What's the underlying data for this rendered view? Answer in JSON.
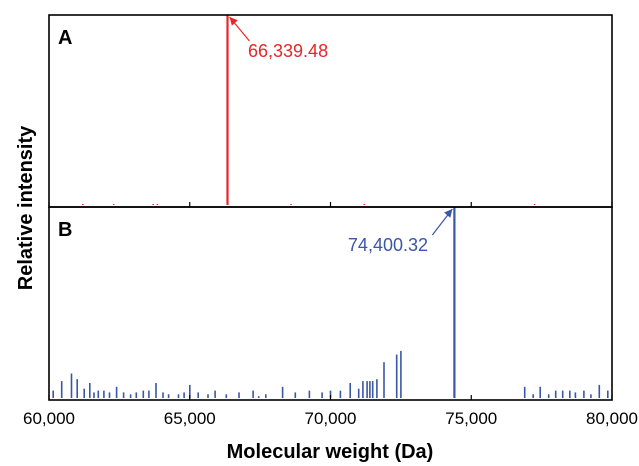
{
  "chart_data": {
    "type": "bar",
    "xlabel": "Molecular weight (Da)",
    "ylabel": "Relative intensity",
    "xlim": [
      60000,
      80000
    ],
    "ylim": [
      0,
      1
    ],
    "xticks": [
      60000,
      65000,
      70000,
      75000,
      80000
    ],
    "xtick_labels": [
      "60,000",
      "65,000",
      "70,000",
      "75,000",
      "80,000"
    ],
    "panels": [
      {
        "label": "A",
        "color": "#e8262a",
        "annotation": "66,339.48",
        "peak_x": 66339.48,
        "peaks": [
          {
            "x": 61200,
            "y": 0.005
          },
          {
            "x": 62300,
            "y": 0.006
          },
          {
            "x": 63700,
            "y": 0.005
          },
          {
            "x": 63850,
            "y": 0.004
          },
          {
            "x": 66339.48,
            "y": 1.0
          },
          {
            "x": 68600,
            "y": 0.004
          },
          {
            "x": 71200,
            "y": 0.004
          },
          {
            "x": 77250,
            "y": 0.008
          }
        ]
      },
      {
        "label": "B",
        "color": "#3a56a6",
        "annotation": "74,400.32",
        "peak_x": 74400.32,
        "peaks": [
          {
            "x": 60150,
            "y": 0.05
          },
          {
            "x": 60450,
            "y": 0.1
          },
          {
            "x": 60800,
            "y": 0.14
          },
          {
            "x": 61000,
            "y": 0.11
          },
          {
            "x": 61250,
            "y": 0.06
          },
          {
            "x": 61450,
            "y": 0.09
          },
          {
            "x": 61600,
            "y": 0.04
          },
          {
            "x": 61750,
            "y": 0.05
          },
          {
            "x": 61950,
            "y": 0.05
          },
          {
            "x": 62150,
            "y": 0.04
          },
          {
            "x": 62400,
            "y": 0.07
          },
          {
            "x": 62650,
            "y": 0.04
          },
          {
            "x": 62900,
            "y": 0.03
          },
          {
            "x": 63100,
            "y": 0.04
          },
          {
            "x": 63350,
            "y": 0.05
          },
          {
            "x": 63550,
            "y": 0.05
          },
          {
            "x": 63800,
            "y": 0.09
          },
          {
            "x": 64050,
            "y": 0.04
          },
          {
            "x": 64250,
            "y": 0.03
          },
          {
            "x": 64600,
            "y": 0.03
          },
          {
            "x": 64800,
            "y": 0.04
          },
          {
            "x": 65000,
            "y": 0.08
          },
          {
            "x": 65300,
            "y": 0.04
          },
          {
            "x": 65650,
            "y": 0.03
          },
          {
            "x": 65900,
            "y": 0.05
          },
          {
            "x": 66300,
            "y": 0.03
          },
          {
            "x": 66750,
            "y": 0.04
          },
          {
            "x": 67250,
            "y": 0.05
          },
          {
            "x": 67450,
            "y": 0.02
          },
          {
            "x": 67700,
            "y": 0.03
          },
          {
            "x": 68300,
            "y": 0.07
          },
          {
            "x": 68750,
            "y": 0.04
          },
          {
            "x": 69250,
            "y": 0.05
          },
          {
            "x": 69700,
            "y": 0.04
          },
          {
            "x": 70000,
            "y": 0.05
          },
          {
            "x": 70350,
            "y": 0.05
          },
          {
            "x": 70700,
            "y": 0.09
          },
          {
            "x": 71000,
            "y": 0.06
          },
          {
            "x": 71150,
            "y": 0.1
          },
          {
            "x": 71300,
            "y": 0.1
          },
          {
            "x": 71400,
            "y": 0.1
          },
          {
            "x": 71500,
            "y": 0.1
          },
          {
            "x": 71650,
            "y": 0.11
          },
          {
            "x": 71900,
            "y": 0.2
          },
          {
            "x": 72350,
            "y": 0.24
          },
          {
            "x": 72500,
            "y": 0.26
          },
          {
            "x": 74400.32,
            "y": 1.0
          },
          {
            "x": 76900,
            "y": 0.07
          },
          {
            "x": 77200,
            "y": 0.03
          },
          {
            "x": 77450,
            "y": 0.07
          },
          {
            "x": 77750,
            "y": 0.03
          },
          {
            "x": 78000,
            "y": 0.05
          },
          {
            "x": 78250,
            "y": 0.05
          },
          {
            "x": 78500,
            "y": 0.05
          },
          {
            "x": 78700,
            "y": 0.04
          },
          {
            "x": 79000,
            "y": 0.05
          },
          {
            "x": 79250,
            "y": 0.03
          },
          {
            "x": 79550,
            "y": 0.08
          },
          {
            "x": 79850,
            "y": 0.05
          }
        ]
      }
    ]
  }
}
